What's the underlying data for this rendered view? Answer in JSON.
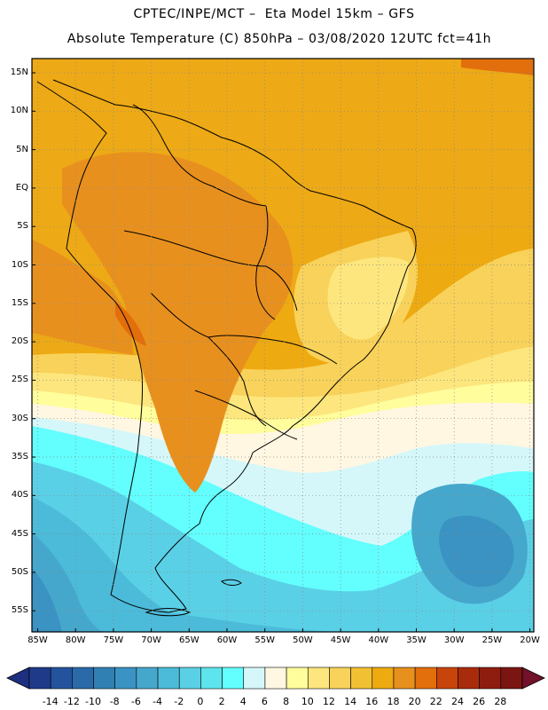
{
  "header": {
    "line1": "CPTEC/INPE/MCT –  Eta Model 15km – GFS",
    "line2": "Absolute Temperature (C) 850hPa – 03/08/2020 12UTC fct=41h"
  },
  "axes": {
    "y_ticks": [
      "15N",
      "10N",
      "5N",
      "EQ",
      "5S",
      "10S",
      "15S",
      "20S",
      "25S",
      "30S",
      "35S",
      "40S",
      "45S",
      "50S",
      "55S"
    ],
    "x_ticks": [
      "85W",
      "80W",
      "75W",
      "70W",
      "65W",
      "60W",
      "55W",
      "50W",
      "45W",
      "40W",
      "35W",
      "30W",
      "25W",
      "20W"
    ],
    "lat_range": [
      17,
      -58
    ],
    "lon_range": [
      -86,
      -20
    ]
  },
  "colorbar": {
    "labels": [
      "-14",
      "-12",
      "-10",
      "-8",
      "-6",
      "-4",
      "-2",
      "0",
      "2",
      "4",
      "6",
      "8",
      "10",
      "12",
      "14",
      "16",
      "18",
      "20",
      "22",
      "24",
      "26",
      "28"
    ],
    "colors": [
      "#1f3a88",
      "#24539e",
      "#2a6aa8",
      "#3180b4",
      "#3a93c2",
      "#46a7cc",
      "#4bbbd9",
      "#5ad0e6",
      "#5de4ed",
      "#63fefe",
      "#d5f7f9",
      "#fff7e2",
      "#fffd9c",
      "#fde67d",
      "#f8d25a",
      "#f2c033",
      "#eeaa11",
      "#e8901e",
      "#e36e0c",
      "#c8440a",
      "#a82c0b",
      "#8e1d0f",
      "#7a1512"
    ],
    "under_color": "#1c2f80",
    "over_color": "#72112a"
  }
}
